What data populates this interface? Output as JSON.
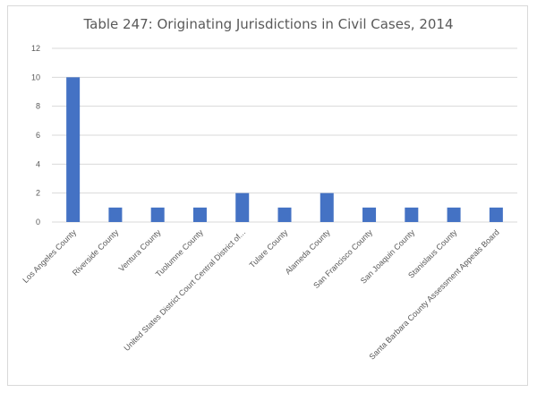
{
  "chart_data": {
    "type": "bar",
    "title": "Table 247: Originating Jurisdictions in Civil Cases, 2014",
    "xlabel": "",
    "ylabel": "",
    "categories": [
      "Los Angeles County",
      "Riverside County",
      "Ventura County",
      "Tuolumne County",
      "United States District Court Central District of...",
      "Tulare County",
      "Alameda County",
      "San Francisco County",
      "San Joaquin County",
      "Stanislaus County",
      "Santa Barbara County Assessment Appeals Board"
    ],
    "values": [
      10,
      1,
      1,
      1,
      2,
      1,
      2,
      1,
      1,
      1,
      1
    ],
    "ylim": [
      0,
      12
    ],
    "yticks": [
      0,
      2,
      4,
      6,
      8,
      10,
      12
    ],
    "grid": true,
    "legend": "none",
    "bar_color": "#4472c4",
    "grid_color": "#d9d9d9"
  }
}
